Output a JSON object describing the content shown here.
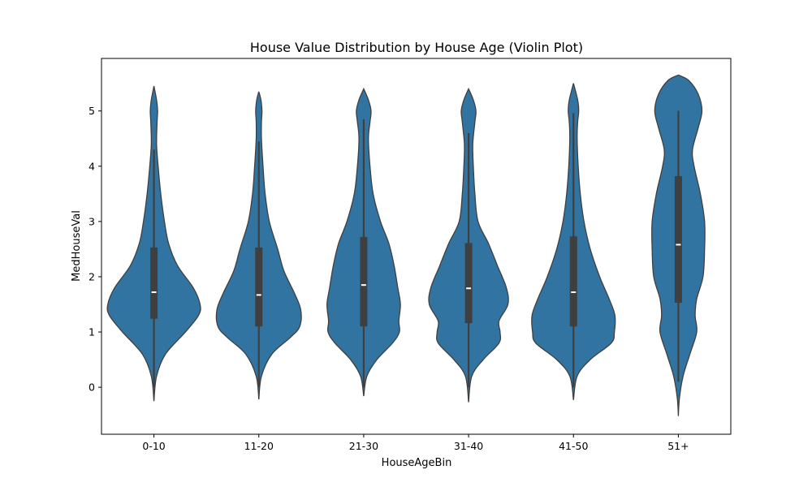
{
  "chart_data": {
    "type": "violin",
    "title": "House Value Distribution by House Age (Violin Plot)",
    "xlabel": "HouseAgeBin",
    "ylabel": "MedHouseVal",
    "ylim": [
      -0.85,
      5.95
    ],
    "yticks": [
      0,
      1,
      2,
      3,
      4,
      5
    ],
    "grid": false,
    "color": "#3274a1",
    "edge_color": "#3f3f3f",
    "categories": [
      "0-10",
      "11-20",
      "21-30",
      "31-40",
      "41-50",
      "51+"
    ],
    "violins": [
      {
        "category": "0-10",
        "whisker": [
          0.0,
          4.3
        ],
        "q1": 1.24,
        "median": 1.72,
        "q3": 2.53,
        "profile": [
          [
            -0.25,
            0
          ],
          [
            0.2,
            0.05
          ],
          [
            0.6,
            0.22
          ],
          [
            1.0,
            0.6
          ],
          [
            1.3,
            0.85
          ],
          [
            1.5,
            0.88
          ],
          [
            1.8,
            0.75
          ],
          [
            2.2,
            0.45
          ],
          [
            2.6,
            0.28
          ],
          [
            3.0,
            0.2
          ],
          [
            3.5,
            0.13
          ],
          [
            4.0,
            0.08
          ],
          [
            4.4,
            0.05
          ],
          [
            4.8,
            0.06
          ],
          [
            5.0,
            0.07
          ],
          [
            5.2,
            0.05
          ],
          [
            5.45,
            0
          ]
        ]
      },
      {
        "category": "11-20",
        "whisker": [
          0.0,
          4.45
        ],
        "q1": 1.1,
        "median": 1.67,
        "q3": 2.53,
        "profile": [
          [
            -0.22,
            0
          ],
          [
            0.2,
            0.05
          ],
          [
            0.6,
            0.25
          ],
          [
            0.9,
            0.6
          ],
          [
            1.1,
            0.78
          ],
          [
            1.4,
            0.8
          ],
          [
            1.7,
            0.68
          ],
          [
            2.1,
            0.48
          ],
          [
            2.5,
            0.36
          ],
          [
            3.0,
            0.2
          ],
          [
            3.5,
            0.12
          ],
          [
            4.0,
            0.08
          ],
          [
            4.5,
            0.05
          ],
          [
            4.8,
            0.05
          ],
          [
            5.0,
            0.06
          ],
          [
            5.2,
            0.04
          ],
          [
            5.35,
            0
          ]
        ]
      },
      {
        "category": "21-30",
        "whisker": [
          0.0,
          4.85
        ],
        "q1": 1.1,
        "median": 1.85,
        "q3": 2.72,
        "profile": [
          [
            -0.16,
            0
          ],
          [
            0.2,
            0.06
          ],
          [
            0.5,
            0.25
          ],
          [
            0.8,
            0.55
          ],
          [
            1.0,
            0.68
          ],
          [
            1.2,
            0.67
          ],
          [
            1.5,
            0.7
          ],
          [
            1.8,
            0.65
          ],
          [
            2.2,
            0.58
          ],
          [
            2.6,
            0.48
          ],
          [
            3.0,
            0.32
          ],
          [
            3.5,
            0.18
          ],
          [
            4.0,
            0.12
          ],
          [
            4.5,
            0.09
          ],
          [
            4.8,
            0.12
          ],
          [
            5.0,
            0.14
          ],
          [
            5.2,
            0.09
          ],
          [
            5.4,
            0
          ]
        ]
      },
      {
        "category": "31-40",
        "whisker": [
          0.0,
          4.6
        ],
        "q1": 1.16,
        "median": 1.79,
        "q3": 2.61,
        "profile": [
          [
            -0.27,
            0
          ],
          [
            0.2,
            0.06
          ],
          [
            0.5,
            0.28
          ],
          [
            0.8,
            0.58
          ],
          [
            1.0,
            0.6
          ],
          [
            1.2,
            0.58
          ],
          [
            1.5,
            0.75
          ],
          [
            1.8,
            0.72
          ],
          [
            2.2,
            0.55
          ],
          [
            2.6,
            0.38
          ],
          [
            3.0,
            0.18
          ],
          [
            3.5,
            0.12
          ],
          [
            4.0,
            0.09
          ],
          [
            4.4,
            0.08
          ],
          [
            4.8,
            0.12
          ],
          [
            5.0,
            0.14
          ],
          [
            5.2,
            0.09
          ],
          [
            5.4,
            0
          ]
        ]
      },
      {
        "category": "41-50",
        "whisker": [
          0.0,
          4.96
        ],
        "q1": 1.1,
        "median": 1.72,
        "q3": 2.73,
        "profile": [
          [
            -0.23,
            0
          ],
          [
            0.2,
            0.07
          ],
          [
            0.5,
            0.32
          ],
          [
            0.8,
            0.72
          ],
          [
            1.0,
            0.78
          ],
          [
            1.3,
            0.79
          ],
          [
            1.6,
            0.68
          ],
          [
            2.0,
            0.5
          ],
          [
            2.5,
            0.32
          ],
          [
            3.0,
            0.2
          ],
          [
            3.5,
            0.13
          ],
          [
            4.0,
            0.09
          ],
          [
            4.5,
            0.07
          ],
          [
            4.8,
            0.08
          ],
          [
            5.0,
            0.1
          ],
          [
            5.2,
            0.08
          ],
          [
            5.5,
            0
          ]
        ]
      },
      {
        "category": "51+",
        "whisker": [
          0.1,
          5.0
        ],
        "q1": 1.53,
        "median": 2.58,
        "q3": 3.82,
        "profile": [
          [
            -0.52,
            0
          ],
          [
            -0.2,
            0.02
          ],
          [
            0.2,
            0.09
          ],
          [
            0.6,
            0.22
          ],
          [
            1.0,
            0.35
          ],
          [
            1.3,
            0.32
          ],
          [
            1.6,
            0.35
          ],
          [
            2.0,
            0.47
          ],
          [
            2.5,
            0.5
          ],
          [
            3.0,
            0.5
          ],
          [
            3.5,
            0.42
          ],
          [
            4.0,
            0.3
          ],
          [
            4.3,
            0.27
          ],
          [
            4.7,
            0.38
          ],
          [
            5.0,
            0.45
          ],
          [
            5.3,
            0.38
          ],
          [
            5.55,
            0.2
          ],
          [
            5.65,
            0
          ]
        ]
      }
    ]
  }
}
